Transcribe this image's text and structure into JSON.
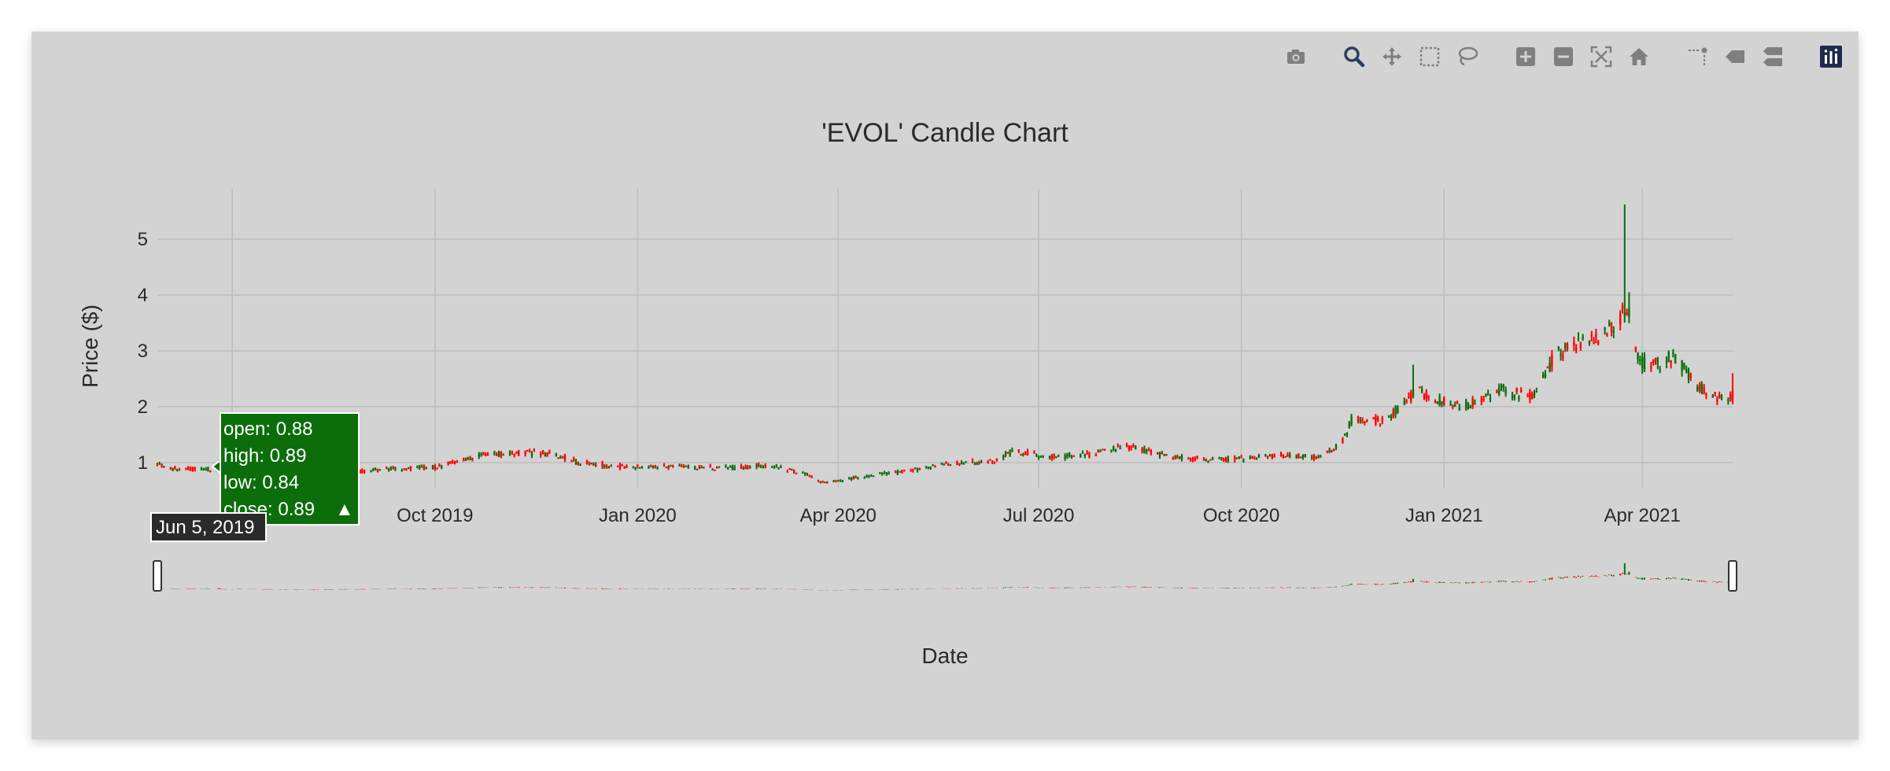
{
  "colors": {
    "background": "#d3d3d3",
    "increasing": "#0b6e0b",
    "decreasing": "#ff0000",
    "grid": "#bdbdbd",
    "tooltip_bg": "#0b6e0b",
    "date_tip_bg": "#2b2b2b",
    "modebar_icon": "#7f7f7f",
    "modebar_active": "#2a3f5f"
  },
  "modebar": [
    {
      "name": "camera-icon",
      "label": "Download plot as a png"
    },
    {
      "name": "zoom-icon",
      "label": "Zoom",
      "active": true
    },
    {
      "name": "pan-icon",
      "label": "Pan"
    },
    {
      "name": "box-select-icon",
      "label": "Box Select"
    },
    {
      "name": "lasso-select-icon",
      "label": "Lasso Select"
    },
    {
      "name": "zoom-in-icon",
      "label": "Zoom in"
    },
    {
      "name": "zoom-out-icon",
      "label": "Zoom out"
    },
    {
      "name": "autoscale-icon",
      "label": "Autoscale"
    },
    {
      "name": "reset-axes-icon",
      "label": "Reset axes"
    },
    {
      "name": "spike-lines-icon",
      "label": "Toggle Spike Lines"
    },
    {
      "name": "hover-closest-icon",
      "label": "Show closest data on hover"
    },
    {
      "name": "hover-compare-icon",
      "label": "Compare data on hover"
    },
    {
      "name": "plotly-logo-icon",
      "label": "Produced with Plotly"
    }
  ],
  "chart_data": {
    "type": "candlestick",
    "title": "'EVOL' Candle Chart",
    "xlabel": "Date",
    "ylabel": "Price ($)",
    "x_range": [
      "2019-05-28",
      "2021-05-12"
    ],
    "ylim": [
      0.55,
      5.9
    ],
    "y_ticks": [
      1,
      2,
      3,
      4,
      5
    ],
    "x_ticks": [
      {
        "date": "2019-07-01",
        "label": ""
      },
      {
        "date": "2019-10-01",
        "label": "Oct 2019"
      },
      {
        "date": "2020-01-01",
        "label": "Jan 2020"
      },
      {
        "date": "2020-04-01",
        "label": "Apr 2020"
      },
      {
        "date": "2020-07-01",
        "label": "Jul 2020"
      },
      {
        "date": "2020-10-01",
        "label": "Oct 2020"
      },
      {
        "date": "2021-01-01",
        "label": "Jan 2021"
      },
      {
        "date": "2021-04-01",
        "label": "Apr 2021"
      }
    ],
    "grid": true,
    "rangeslider": true,
    "price_path": [
      [
        "2019-05-28",
        0.97
      ],
      [
        "2019-06-05",
        0.89
      ],
      [
        "2019-06-25",
        0.87
      ],
      [
        "2019-07-10",
        0.83
      ],
      [
        "2019-07-25",
        0.8
      ],
      [
        "2019-08-10",
        0.78
      ],
      [
        "2019-08-25",
        0.84
      ],
      [
        "2019-09-15",
        0.9
      ],
      [
        "2019-10-01",
        0.92
      ],
      [
        "2019-10-20",
        1.12
      ],
      [
        "2019-11-10",
        1.18
      ],
      [
        "2019-11-25",
        1.15
      ],
      [
        "2019-12-05",
        1.0
      ],
      [
        "2019-12-25",
        0.93
      ],
      [
        "2020-01-20",
        0.92
      ],
      [
        "2020-02-15",
        0.91
      ],
      [
        "2020-03-01",
        0.95
      ],
      [
        "2020-03-15",
        0.82
      ],
      [
        "2020-03-25",
        0.65
      ],
      [
        "2020-04-10",
        0.73
      ],
      [
        "2020-05-01",
        0.85
      ],
      [
        "2020-05-20",
        0.97
      ],
      [
        "2020-06-10",
        1.02
      ],
      [
        "2020-06-20",
        1.2
      ],
      [
        "2020-07-05",
        1.1
      ],
      [
        "2020-07-25",
        1.15
      ],
      [
        "2020-08-10",
        1.3
      ],
      [
        "2020-08-25",
        1.15
      ],
      [
        "2020-09-15",
        1.05
      ],
      [
        "2020-10-01",
        1.07
      ],
      [
        "2020-10-20",
        1.14
      ],
      [
        "2020-11-05",
        1.1
      ],
      [
        "2020-11-15",
        1.3
      ],
      [
        "2020-11-20",
        1.75
      ],
      [
        "2020-12-05",
        1.75
      ],
      [
        "2020-12-20",
        2.3
      ],
      [
        "2020-12-30",
        2.1
      ],
      [
        "2021-01-10",
        2.0
      ],
      [
        "2021-01-25",
        2.3
      ],
      [
        "2021-02-10",
        2.2
      ],
      [
        "2021-02-20",
        2.9
      ],
      [
        "2021-02-28",
        3.1
      ],
      [
        "2021-03-10",
        3.2
      ],
      [
        "2021-03-20",
        3.5
      ],
      [
        "2021-03-25",
        3.8
      ],
      [
        "2021-03-31",
        2.8
      ],
      [
        "2021-04-10",
        2.75
      ],
      [
        "2021-04-15",
        2.95
      ],
      [
        "2021-04-25",
        2.4
      ],
      [
        "2021-05-05",
        2.15
      ],
      [
        "2021-05-12",
        2.2
      ]
    ],
    "spikes": [
      {
        "date": "2019-06-25",
        "high": 1.05
      },
      {
        "date": "2020-06-20",
        "high": 1.6
      },
      {
        "date": "2020-08-15",
        "high": 1.42
      },
      {
        "date": "2020-12-18",
        "high": 2.75
      },
      {
        "date": "2021-03-24",
        "high": 5.62
      },
      {
        "date": "2021-03-26",
        "high": 4.05
      },
      {
        "date": "2021-05-12",
        "high": 2.6
      }
    ],
    "hover": {
      "date_label": "Jun 5, 2019",
      "open_text": "open: 0.88",
      "high_text": "high: 0.89",
      "low_text": "low: 0.84",
      "close_text": "close: 0.89",
      "direction_marker": "▲"
    }
  }
}
